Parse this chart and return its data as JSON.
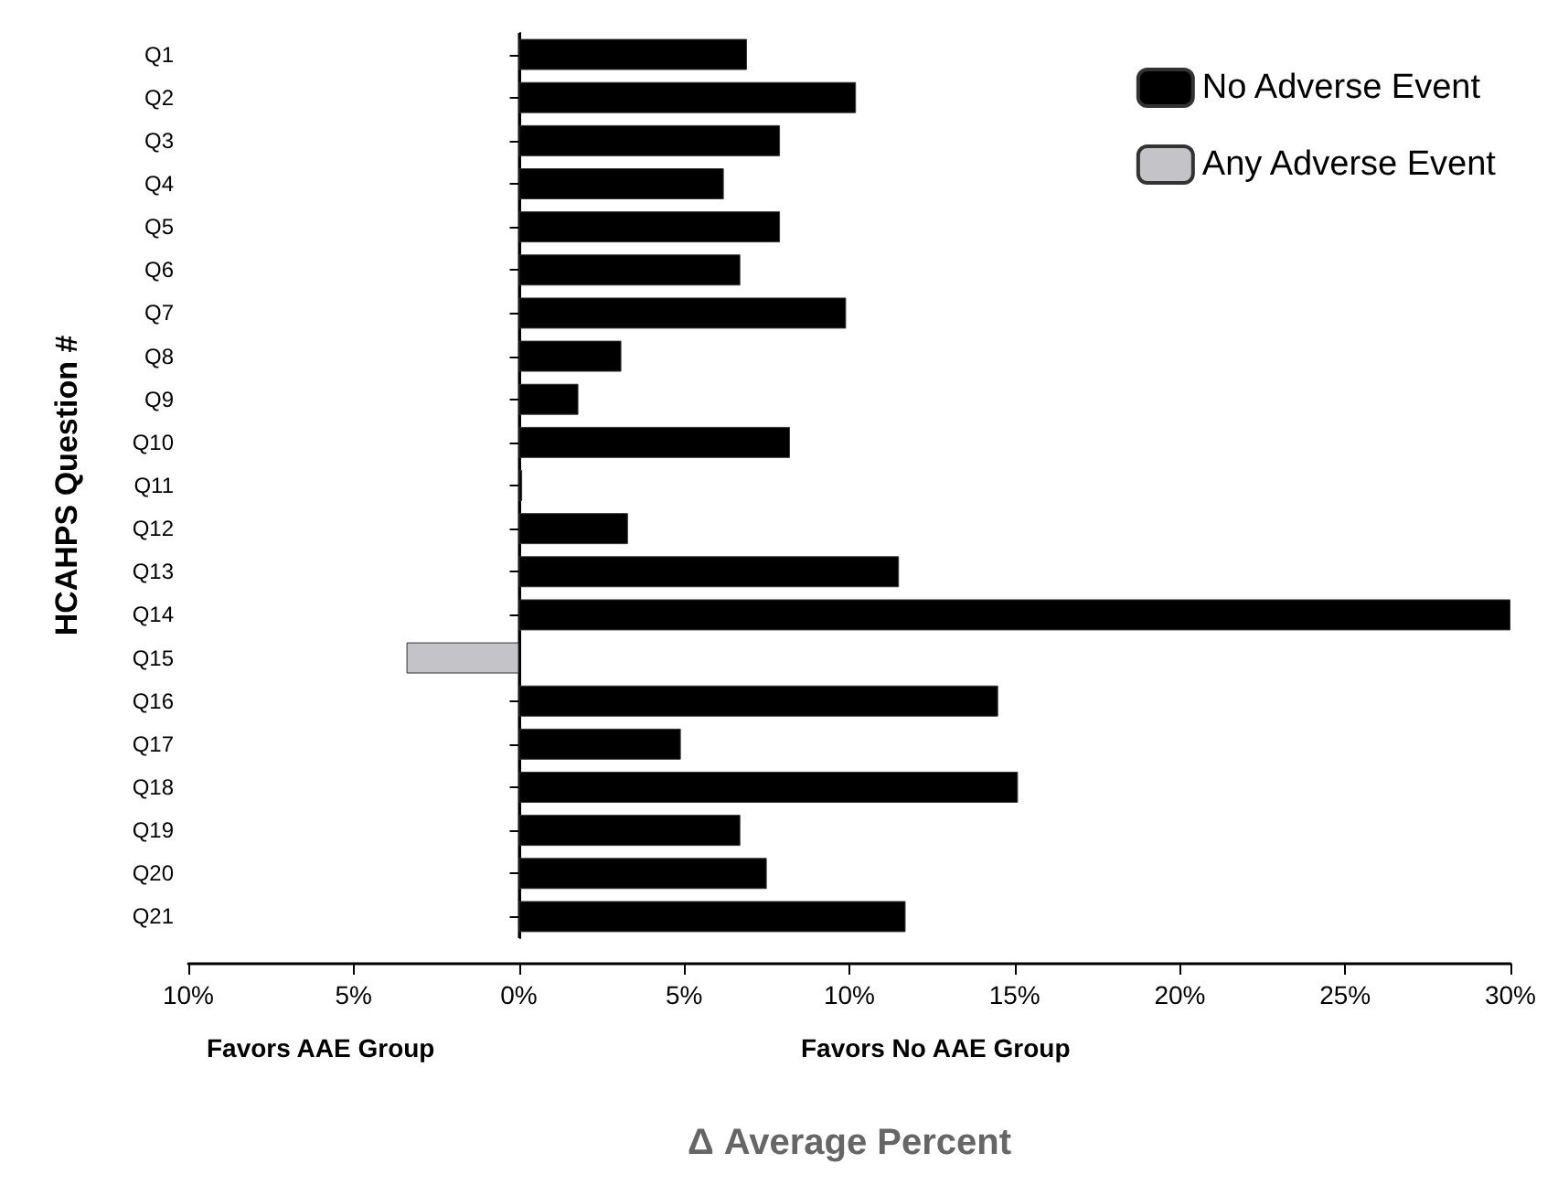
{
  "chart_data": {
    "type": "bar",
    "orientation": "horizontal",
    "ylabel": "HCAHPS Question #",
    "xlabel": "Δ Average Percent",
    "categories": [
      "Q1",
      "Q2",
      "Q3",
      "Q4",
      "Q5",
      "Q6",
      "Q7",
      "Q8",
      "Q9",
      "Q10",
      "Q11",
      "Q12",
      "Q13",
      "Q14",
      "Q15",
      "Q16",
      "Q17",
      "Q18",
      "Q19",
      "Q20",
      "Q21"
    ],
    "series": [
      {
        "name": "No Adverse Event",
        "color": "#000000",
        "values": [
          6.9,
          10.2,
          7.9,
          6.2,
          7.9,
          6.7,
          9.9,
          3.1,
          1.8,
          8.2,
          0.1,
          3.3,
          11.5,
          30.0,
          null,
          14.5,
          4.9,
          15.1,
          6.7,
          7.5,
          11.7
        ]
      },
      {
        "name": "Any Adverse Event",
        "color": "#c4c4c8",
        "values": [
          null,
          null,
          null,
          null,
          null,
          null,
          null,
          null,
          null,
          null,
          null,
          null,
          null,
          null,
          -3.4,
          null,
          null,
          null,
          null,
          null,
          null
        ]
      }
    ],
    "xlim": [
      -10,
      30
    ],
    "xticks": [
      {
        "value": -10,
        "label": "10%"
      },
      {
        "value": -5,
        "label": "5%"
      },
      {
        "value": 0,
        "label": "0%"
      },
      {
        "value": 5,
        "label": "5%"
      },
      {
        "value": 10,
        "label": "10%"
      },
      {
        "value": 15,
        "label": "15%"
      },
      {
        "value": 20,
        "label": "20%"
      },
      {
        "value": 25,
        "label": "25%"
      },
      {
        "value": 30,
        "label": "30%"
      }
    ],
    "ref_lines": [
      {
        "axis": "x",
        "value": 0,
        "color": "#000000"
      }
    ],
    "annotations": [
      "Favors AAE Group",
      "Favors No AAE Group"
    ],
    "grid": false,
    "legend": "top right"
  }
}
